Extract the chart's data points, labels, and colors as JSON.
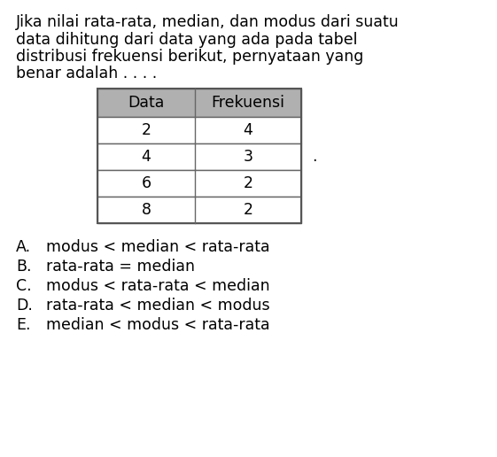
{
  "title_lines": [
    "Jika nilai rata-rata, median, dan modus dari suatu",
    "data dihitung dari data yang ada pada tabel",
    "distribusi frekuensi berikut, pernyataan yang",
    "benar adalah . . . ."
  ],
  "table_header": [
    "Data",
    "Frekuensi"
  ],
  "table_rows": [
    [
      "2",
      "4"
    ],
    [
      "4",
      "3"
    ],
    [
      "6",
      "2"
    ],
    [
      "8",
      "2"
    ]
  ],
  "header_bg": "#b0b0b0",
  "header_text_color": "#000000",
  "row_bg": "#ffffff",
  "row_text_color": "#000000",
  "options": [
    [
      "A.",
      "modus < median < rata-rata"
    ],
    [
      "B.",
      "rata-rata = median"
    ],
    [
      "C.",
      "modus < rata-rata < median"
    ],
    [
      "D.",
      "rata-rata < median < modus"
    ],
    [
      "E.",
      "median < modus < rata-rata"
    ]
  ],
  "bg_color": "#ffffff",
  "title_fontsize": 12.5,
  "table_fontsize": 12.5,
  "options_fontsize": 12.5,
  "dot_after_table": "."
}
